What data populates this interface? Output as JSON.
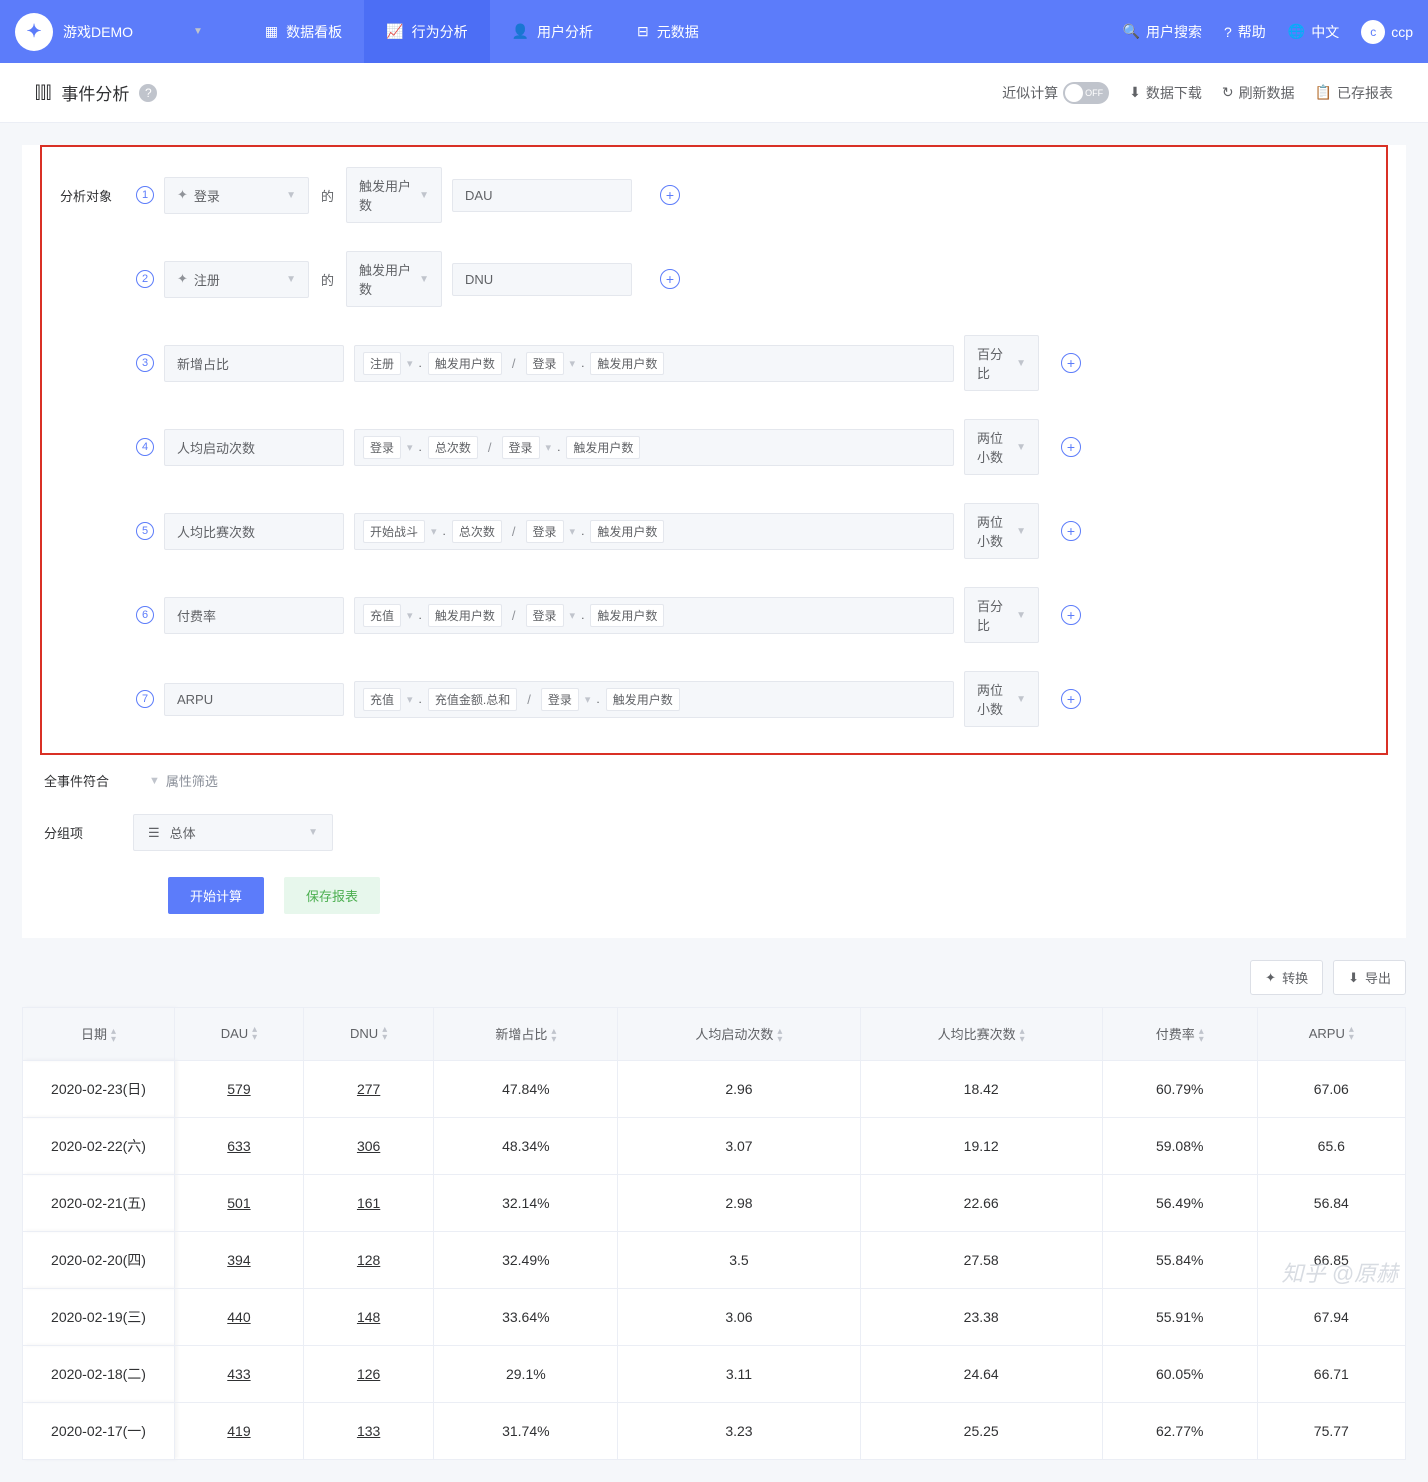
{
  "topnav": {
    "brand": "游戏DEMO",
    "items": [
      {
        "icon": "dashboard",
        "label": "数据看板"
      },
      {
        "icon": "chart",
        "label": "行为分析",
        "active": true
      },
      {
        "icon": "user",
        "label": "用户分析"
      },
      {
        "icon": "meta",
        "label": "元数据"
      }
    ],
    "right": {
      "search": "用户搜索",
      "help": "帮助",
      "lang": "中文",
      "user": "ccp"
    }
  },
  "subheader": {
    "title": "事件分析",
    "approx_label": "近似计算",
    "approx_toggle": "OFF",
    "actions": {
      "download": "数据下载",
      "refresh": "刷新数据",
      "saved": "已存报表"
    }
  },
  "config": {
    "section_label": "分析对象",
    "of": "的",
    "rows": [
      {
        "n": "1",
        "event": "登录",
        "metric": "触发用户数",
        "alias": "DAU",
        "type": "event"
      },
      {
        "n": "2",
        "event": "注册",
        "metric": "触发用户数",
        "alias": "DNU",
        "type": "event"
      },
      {
        "n": "3",
        "name": "新增占比",
        "formula": [
          [
            "注册",
            "触发用户数"
          ],
          [
            "登录",
            "触发用户数"
          ]
        ],
        "format": "百分比",
        "type": "calc"
      },
      {
        "n": "4",
        "name": "人均启动次数",
        "formula": [
          [
            "登录",
            "总次数"
          ],
          [
            "登录",
            "触发用户数"
          ]
        ],
        "format": "两位小数",
        "type": "calc"
      },
      {
        "n": "5",
        "name": "人均比赛次数",
        "formula": [
          [
            "开始战斗",
            "总次数"
          ],
          [
            "登录",
            "触发用户数"
          ]
        ],
        "format": "两位小数",
        "type": "calc"
      },
      {
        "n": "6",
        "name": "付费率",
        "formula": [
          [
            "充值",
            "触发用户数"
          ],
          [
            "登录",
            "触发用户数"
          ]
        ],
        "format": "百分比",
        "type": "calc"
      },
      {
        "n": "7",
        "name": "ARPU",
        "formula": [
          [
            "充值",
            "充值金额.总和"
          ],
          [
            "登录",
            "触发用户数"
          ]
        ],
        "format": "两位小数",
        "type": "calc"
      }
    ]
  },
  "filters": {
    "all_events": "全事件符合",
    "prop_filter": "属性筛选"
  },
  "group": {
    "label": "分组项",
    "value": "总体"
  },
  "buttons": {
    "calc": "开始计算",
    "save": "保存报表"
  },
  "table_toolbar": {
    "convert": "转换",
    "export": "导出"
  },
  "table": {
    "columns": [
      "日期",
      "DAU",
      "DNU",
      "新增占比",
      "人均启动次数",
      "人均比赛次数",
      "付费率",
      "ARPU"
    ],
    "rows": [
      [
        "2020-02-23(日)",
        "579",
        "277",
        "47.84%",
        "2.96",
        "18.42",
        "60.79%",
        "67.06"
      ],
      [
        "2020-02-22(六)",
        "633",
        "306",
        "48.34%",
        "3.07",
        "19.12",
        "59.08%",
        "65.6"
      ],
      [
        "2020-02-21(五)",
        "501",
        "161",
        "32.14%",
        "2.98",
        "22.66",
        "56.49%",
        "56.84"
      ],
      [
        "2020-02-20(四)",
        "394",
        "128",
        "32.49%",
        "3.5",
        "27.58",
        "55.84%",
        "66.85"
      ],
      [
        "2020-02-19(三)",
        "440",
        "148",
        "33.64%",
        "3.06",
        "23.38",
        "55.91%",
        "67.94"
      ],
      [
        "2020-02-18(二)",
        "433",
        "126",
        "29.1%",
        "3.11",
        "24.64",
        "60.05%",
        "66.71"
      ],
      [
        "2020-02-17(一)",
        "419",
        "133",
        "31.74%",
        "3.23",
        "25.25",
        "62.77%",
        "75.77"
      ]
    ]
  },
  "watermark": "知乎 @原赫",
  "colors": {
    "primary": "#5c7cfa",
    "nav_active": "#4c6ef5",
    "border_highlight": "#d93025",
    "bg_light": "#f5f7fa",
    "success_bg": "#e7f7ec",
    "success_text": "#4caf50",
    "text": "#303133",
    "text_muted": "#606266"
  }
}
